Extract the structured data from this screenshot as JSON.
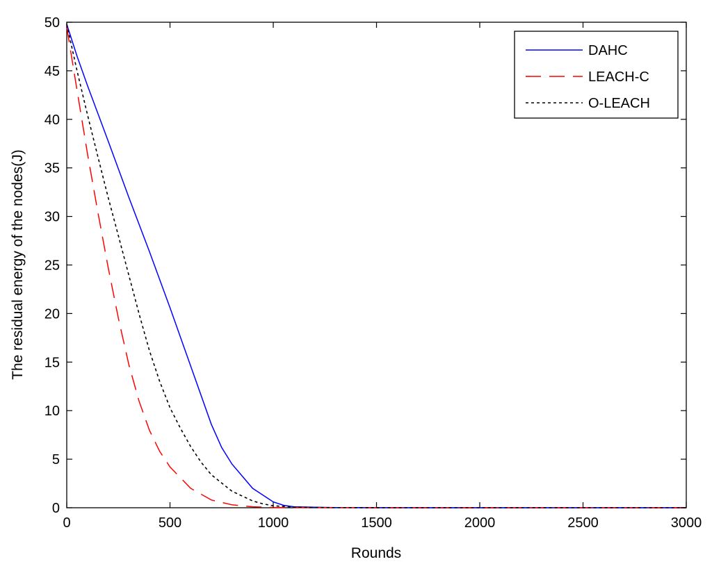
{
  "chart_data": {
    "type": "line",
    "xlabel": "Rounds",
    "ylabel": "The residual energy of the nodes(J)",
    "xlim": [
      0,
      3000
    ],
    "ylim": [
      0,
      50
    ],
    "xticks": [
      0,
      500,
      1000,
      1500,
      2000,
      2500,
      3000
    ],
    "yticks": [
      0,
      5,
      10,
      15,
      20,
      25,
      30,
      35,
      40,
      45,
      50
    ],
    "grid": false,
    "legend_position": "top-right",
    "series": [
      {
        "name": "DAHC",
        "color": "#0000ff",
        "style": "solid",
        "x": [
          0,
          50,
          100,
          200,
          300,
          400,
          500,
          600,
          700,
          750,
          800,
          900,
          1000,
          1050,
          1100,
          1200,
          1300,
          1500,
          2000,
          2500,
          3000
        ],
        "y": [
          49.8,
          46.5,
          43.5,
          37.8,
          32.0,
          26.4,
          20.6,
          14.6,
          8.6,
          6.2,
          4.5,
          2.0,
          0.6,
          0.25,
          0.1,
          0.05,
          0.02,
          0.01,
          0,
          0,
          0
        ]
      },
      {
        "name": "LEACH-C",
        "color": "#ff0000",
        "style": "dashed",
        "x": [
          0,
          50,
          100,
          150,
          200,
          250,
          300,
          350,
          400,
          450,
          500,
          600,
          700,
          800,
          900,
          1000,
          1500,
          2000,
          3000
        ],
        "y": [
          49.5,
          43.0,
          36.5,
          30.5,
          24.8,
          19.5,
          14.8,
          11.0,
          8.0,
          5.8,
          4.2,
          2.0,
          0.8,
          0.3,
          0.1,
          0.03,
          0,
          0,
          0
        ]
      },
      {
        "name": "O-LEACH",
        "color": "#000000",
        "style": "dotted",
        "x": [
          0,
          50,
          100,
          150,
          200,
          250,
          300,
          350,
          400,
          450,
          500,
          550,
          600,
          650,
          700,
          800,
          900,
          950,
          1000,
          1100,
          1200,
          1500,
          2000,
          3000
        ],
        "y": [
          49.8,
          45.0,
          40.5,
          36.2,
          32.0,
          28.0,
          24.0,
          20.0,
          16.2,
          13.0,
          10.3,
          8.2,
          6.3,
          4.7,
          3.4,
          1.7,
          0.7,
          0.4,
          0.2,
          0.07,
          0.02,
          0,
          0,
          0
        ]
      }
    ]
  }
}
